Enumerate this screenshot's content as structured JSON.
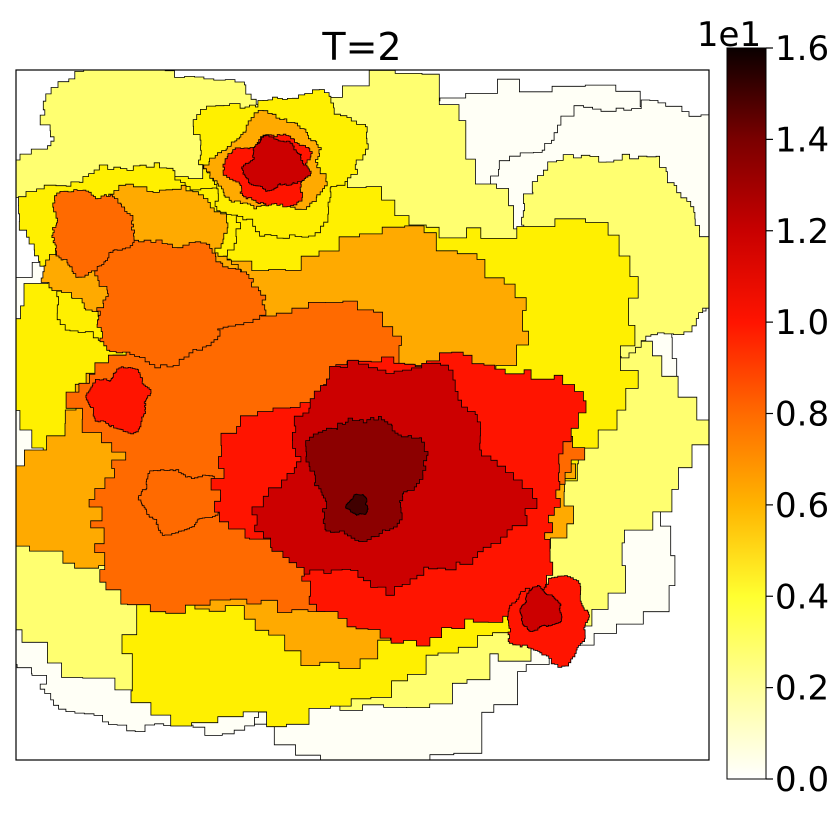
{
  "chart_data": {
    "type": "heatmap",
    "title": "T=2",
    "colormap": "hot_r",
    "colorbar": {
      "exponent_label": "1e1",
      "min": 0.0,
      "max": 1.6,
      "ticks": [
        0.0,
        0.2,
        0.4,
        0.6,
        0.8,
        1.0,
        1.2,
        1.4,
        1.6
      ],
      "tick_labels": [
        "0.0",
        "0.2",
        "0.4",
        "0.6",
        "0.8",
        "1.0",
        "1.2",
        "1.4",
        "1.6"
      ]
    },
    "levels": [
      0.0,
      0.2,
      0.4,
      0.6,
      0.8,
      1.0,
      1.2,
      1.4,
      1.6
    ],
    "level_colors": [
      "#fffff6",
      "#ffff70",
      "#fff000",
      "#ffaa00",
      "#ff6a00",
      "#ff1400",
      "#cc0000",
      "#8c0000",
      "#400000"
    ],
    "grid": false,
    "axes_ticks": false,
    "contour_lines": true,
    "peak_value": 1.6
  }
}
